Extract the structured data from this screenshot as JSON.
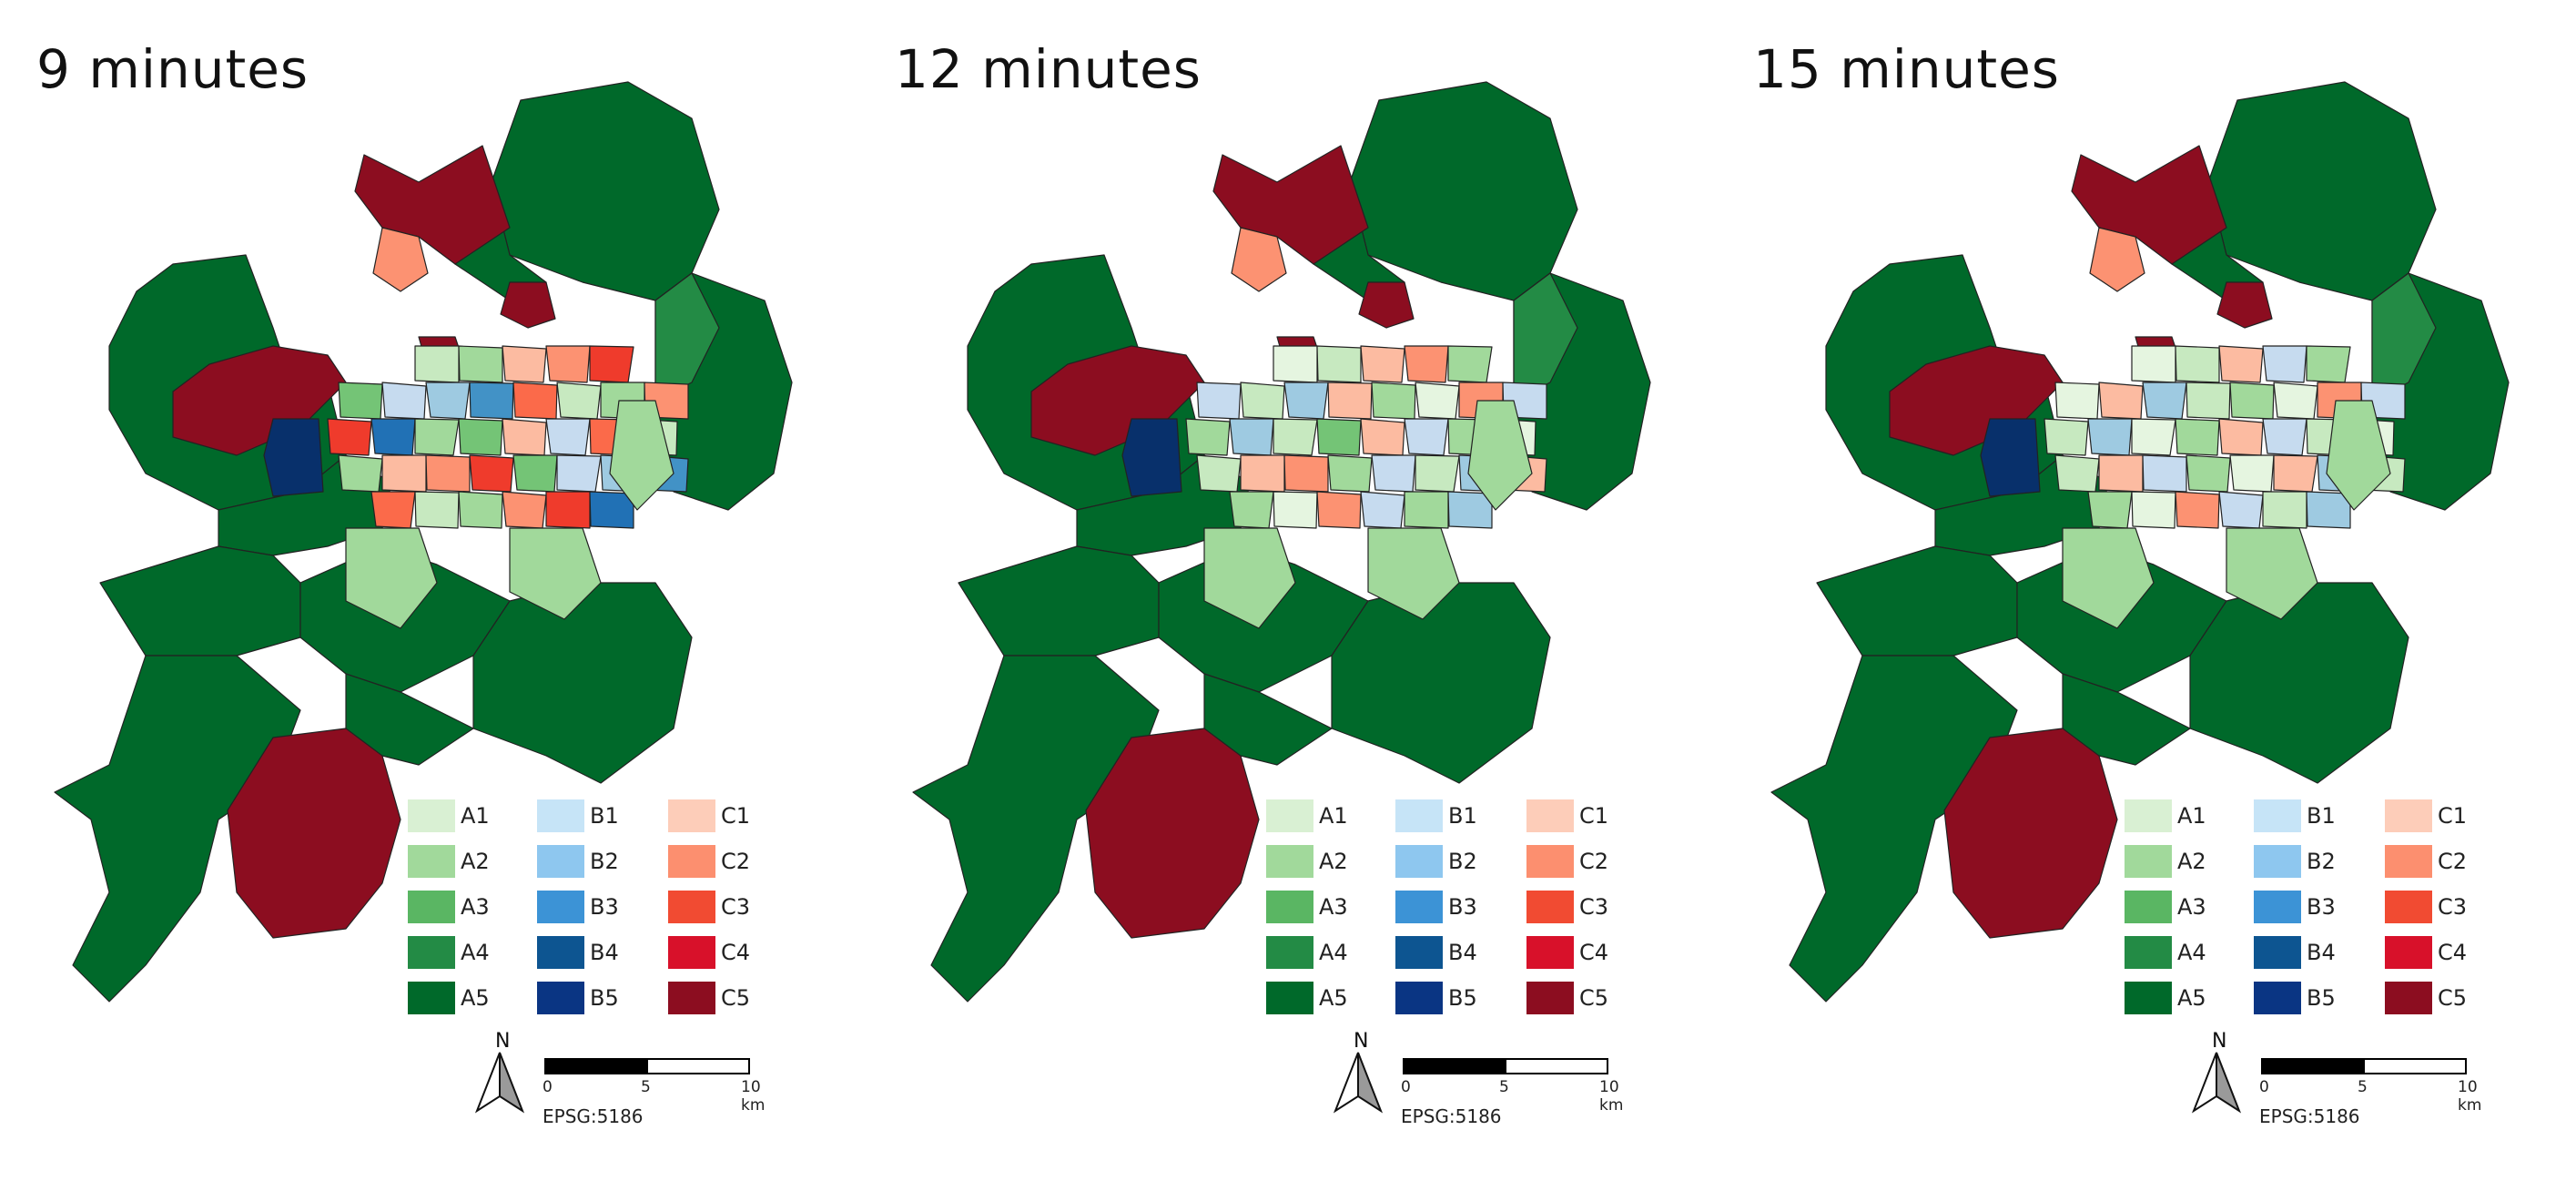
{
  "figure": {
    "panels": [
      {
        "title": "9 minutes",
        "center_colors": [
          "#c7e9c0",
          "#a1d99b",
          "#fcbba1",
          "#fc9272",
          "#ef3b2c",
          "#74c476",
          "#c6dbef",
          "#9ecae1",
          "#4292c6",
          "#fb6a4a",
          "#c7e9c0",
          "#a1d99b",
          "#fc9272",
          "#ef3b2c",
          "#2171b5",
          "#a1d99b",
          "#74c476",
          "#fcbba1",
          "#c6dbef",
          "#fb6a4a"
        ],
        "ring_color": "#a1d99b",
        "north_color": "#fc9272",
        "west_mid_color": "#08306b",
        "east_inner": "#238b45"
      },
      {
        "title": "12 minutes",
        "center_colors": [
          "#e5f5e0",
          "#c7e9c0",
          "#fcbba1",
          "#fc9272",
          "#a1d99b",
          "#c6dbef",
          "#c7e9c0",
          "#9ecae1",
          "#fcbba1",
          "#a1d99b",
          "#e5f5e0",
          "#fc9272",
          "#c6dbef",
          "#a1d99b",
          "#9ecae1",
          "#c7e9c0",
          "#74c476",
          "#fcbba1",
          "#c6dbef",
          "#a1d99b"
        ],
        "ring_color": "#a1d99b",
        "north_color": "#fc9272",
        "west_mid_color": "#08306b",
        "east_inner": "#238b45"
      },
      {
        "title": "15 minutes",
        "center_colors": [
          "#e5f5e0",
          "#c7e9c0",
          "#fcbba1",
          "#c6dbef",
          "#a1d99b",
          "#e5f5e0",
          "#fcbba1",
          "#9ecae1",
          "#c7e9c0",
          "#a1d99b",
          "#e5f5e0",
          "#fc9272",
          "#c6dbef",
          "#c7e9c0",
          "#9ecae1",
          "#e5f5e0",
          "#a1d99b",
          "#fcbba1",
          "#c6dbef",
          "#c7e9c0"
        ],
        "ring_color": "#a1d99b",
        "north_color": "#fc9272",
        "west_mid_color": "#08306b",
        "east_inner": "#238b45"
      }
    ],
    "legend": {
      "columns": [
        {
          "items": [
            {
              "label": "A1",
              "color": "#d9f0d3"
            },
            {
              "label": "A2",
              "color": "#a1d99b"
            },
            {
              "label": "A3",
              "color": "#5ab663"
            },
            {
              "label": "A4",
              "color": "#238b45"
            },
            {
              "label": "A5",
              "color": "#00692a"
            }
          ]
        },
        {
          "items": [
            {
              "label": "B1",
              "color": "#c6e4f7"
            },
            {
              "label": "B2",
              "color": "#8ec7ef"
            },
            {
              "label": "B3",
              "color": "#3c93d6"
            },
            {
              "label": "B4",
              "color": "#0d5591"
            },
            {
              "label": "B5",
              "color": "#0a3583"
            }
          ]
        },
        {
          "items": [
            {
              "label": "C1",
              "color": "#fdcdb9"
            },
            {
              "label": "C2",
              "color": "#fc8f6f"
            },
            {
              "label": "C3",
              "color": "#f14b32"
            },
            {
              "label": "C4",
              "color": "#d8112a"
            },
            {
              "label": "C5",
              "color": "#8c0d20"
            }
          ]
        }
      ]
    },
    "scale_bar": {
      "ticks": [
        "0",
        "5",
        "10 km"
      ]
    },
    "north_arrow_label": "N",
    "crs_label": "EPSG:5186",
    "colors": {
      "dark_green": "#00692a",
      "dark_red": "#8c0d20",
      "border": "#222222"
    }
  }
}
